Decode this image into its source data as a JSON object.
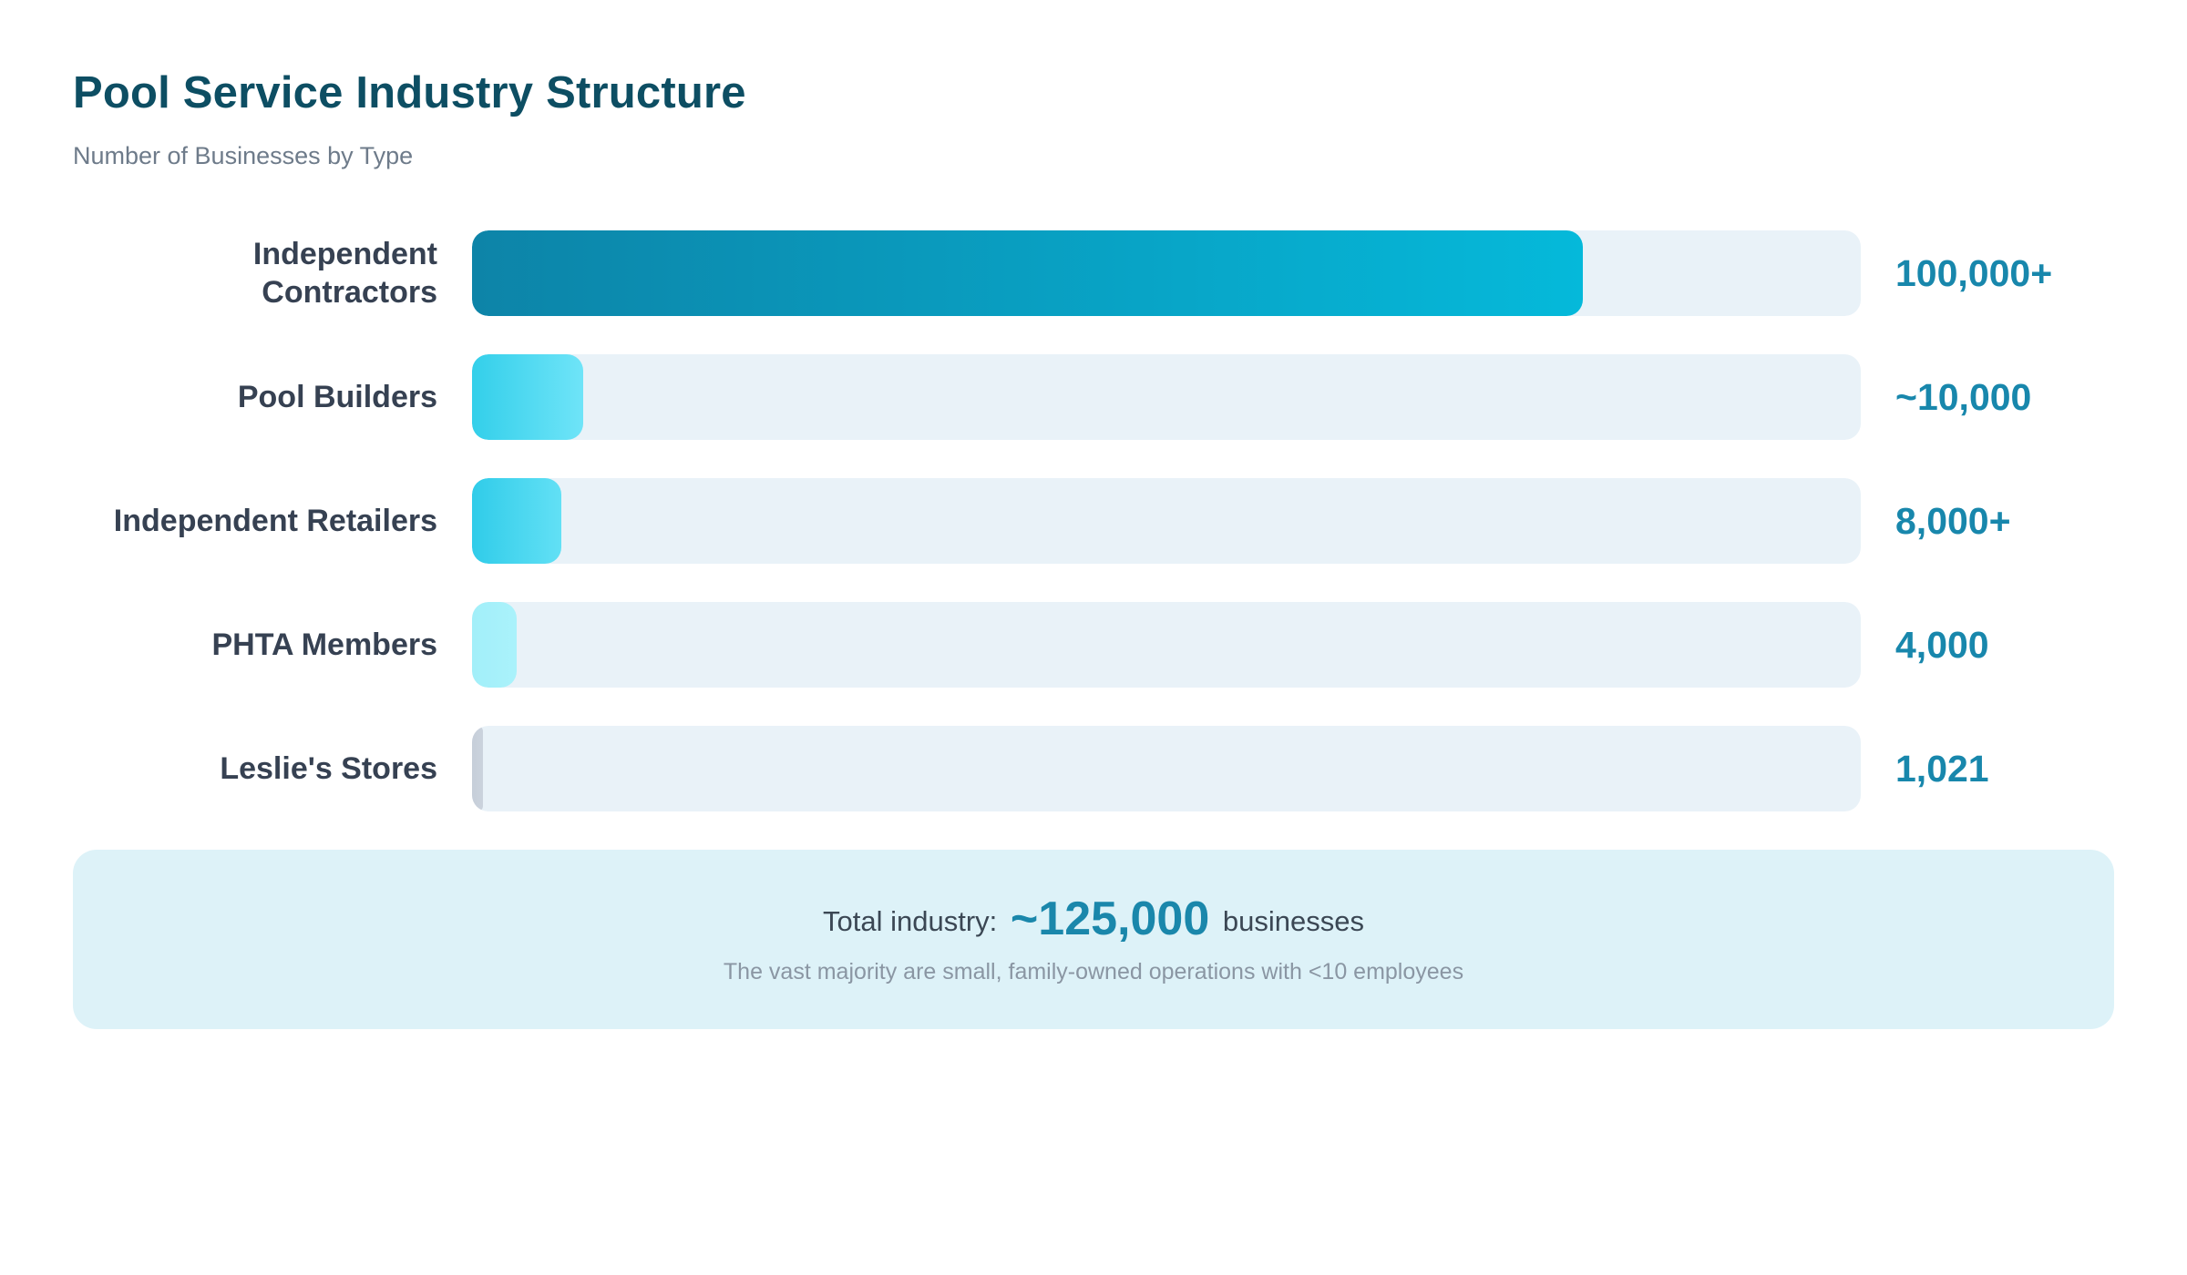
{
  "header": {
    "title": "Pool Service Industry Structure",
    "subtitle": "Number of Businesses by Type"
  },
  "chart_data": {
    "type": "bar",
    "orientation": "horizontal",
    "title": "Pool Service Industry Structure",
    "subtitle": "Number of Businesses by Type",
    "categories": [
      "Independent Contractors",
      "Pool Builders",
      "Independent Retailers",
      "PHTA Members",
      "Leslie's Stores"
    ],
    "values": [
      100000,
      10000,
      8000,
      4000,
      1021
    ],
    "value_labels": [
      "100,000+",
      "~10,000",
      "8,000+",
      "4,000",
      "1,021"
    ],
    "axis_max": 125000,
    "grid": false,
    "legend": false,
    "track_color": "#e9f2f8",
    "bar_gradients": [
      [
        "#0d84a8",
        "#05b9da"
      ],
      [
        "#33cfea",
        "#6fe4f8"
      ],
      [
        "#30cce9",
        "#62e0f5"
      ],
      [
        "#a2eff9",
        "#aaf2fb"
      ],
      [
        "#c6ced9",
        "#cbd3dd"
      ]
    ]
  },
  "rows": [
    {
      "label": "Independent Contractors",
      "label_display": "Independent\nContractors",
      "value_label": "100,000+",
      "percent": 80,
      "color_start": "#0d84a8",
      "color_end": "#05b9da"
    },
    {
      "label": "Pool Builders",
      "label_display": "Pool Builders",
      "value_label": "~10,000",
      "percent": 8,
      "color_start": "#33cfea",
      "color_end": "#6fe4f8"
    },
    {
      "label": "Independent Retailers",
      "label_display": "Independent Retailers",
      "value_label": "8,000+",
      "percent": 6.4,
      "color_start": "#30cce9",
      "color_end": "#62e0f5"
    },
    {
      "label": "PHTA Members",
      "label_display": "PHTA Members",
      "value_label": "4,000",
      "percent": 3.2,
      "color_start": "#a2eff9",
      "color_end": "#aaf2fb"
    },
    {
      "label": "Leslie's Stores",
      "label_display": "Leslie's Stores",
      "value_label": "1,021",
      "percent": 0.8,
      "color_start": "#c6ced9",
      "color_end": "#cbd3dd"
    }
  ],
  "footer": {
    "total_prefix": "Total industry: ",
    "total_value": "~125,000",
    "total_suffix": " businesses",
    "note": "The vast majority are small, family-owned operations with <10 employees"
  },
  "colors": {
    "title": "#0d4e63",
    "subtitle": "#6e7b8a",
    "row_label": "#364152",
    "row_value": "#1887ac",
    "summary_bg": "#ddf2f8",
    "summary_text": "#3b4754",
    "summary_accent": "#1a87ab",
    "summary_note": "#8a96a3"
  }
}
